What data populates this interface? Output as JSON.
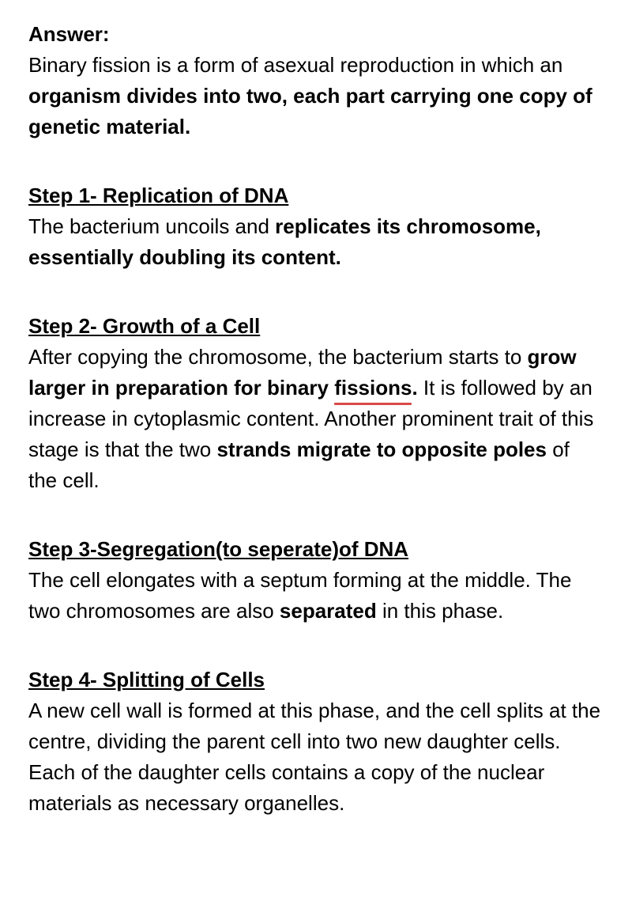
{
  "answer": {
    "label": "Answer:",
    "text_1": "Binary fission is a form of asexual reproduction in which an ",
    "bold_1": "organism divides into two, each part carrying one copy of genetic material."
  },
  "step1": {
    "heading": "Step 1-  Replication of DNA",
    "text_1": "The bacterium uncoils and ",
    "bold_1": "replicates its chromosome, essentially doubling its content."
  },
  "step2": {
    "heading": "Step 2-  Growth of a Cell",
    "text_1": "After copying the chromosome, the bacterium starts to ",
    "bold_1": "grow larger in preparation for binary ",
    "squiggle": "fissions",
    "bold_2": ".",
    "text_2": " It is followed by an increase in cytoplasmic content. Another prominent trait of this stage is that the two ",
    "bold_3": "strands migrate to opposite poles",
    "text_3": " of the cell."
  },
  "step3": {
    "heading": "Step 3-Segregation(to seperate)of DNA",
    "text_1": "The cell elongates with a septum forming at the middle. The two chromosomes are also ",
    "bold_1": "separated",
    "text_2": " in this phase."
  },
  "step4": {
    "heading": "Step 4- Splitting of Cells",
    "text_1": "A new cell wall is formed at this phase, and the cell splits at the centre, dividing the parent cell into two new daughter cells. Each of the daughter cells contains a copy of the nuclear materials as necessary organelles."
  }
}
